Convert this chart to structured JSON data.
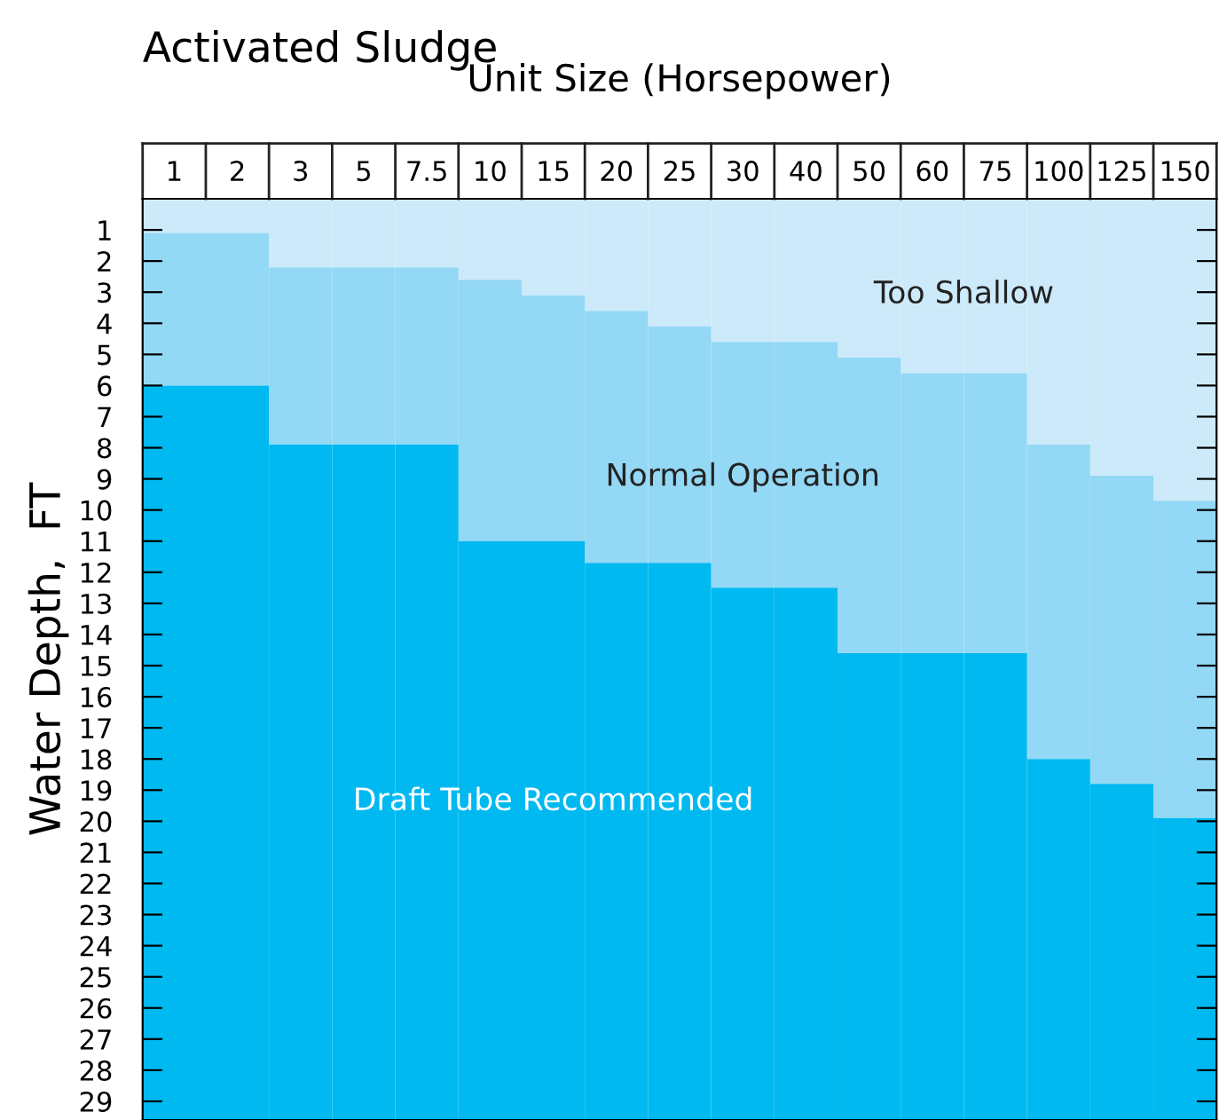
{
  "chart_data": {
    "type": "bar",
    "stacked": true,
    "title": "Activated Sludge",
    "xlabel": "Unit Size (Horsepower)",
    "ylabel": "Water Depth,  FT",
    "categories": [
      "1",
      "2",
      "3",
      "5",
      "7.5",
      "10",
      "15",
      "20",
      "25",
      "30",
      "40",
      "50",
      "60",
      "75",
      "100",
      "125",
      "150"
    ],
    "series": [
      {
        "name": "Too Shallow",
        "color": "#cdeafa",
        "values": [
          1.1,
          1.1,
          2.2,
          2.2,
          2.2,
          2.6,
          3.1,
          3.6,
          4.1,
          4.6,
          4.6,
          5.1,
          5.6,
          5.6,
          7.9,
          8.9,
          9.7
        ]
      },
      {
        "name": "Normal Operation",
        "color": "#93d8f5",
        "values": [
          4.9,
          4.9,
          5.7,
          5.7,
          5.7,
          8.4,
          7.9,
          8.1,
          7.6,
          7.9,
          7.9,
          9.5,
          9.0,
          9.0,
          10.1,
          9.9,
          10.2
        ]
      },
      {
        "name": "Draft Tube Recommended",
        "color": "#00b9f0",
        "values": [
          23.6,
          23.6,
          21.7,
          21.7,
          21.7,
          18.6,
          18.6,
          17.9,
          17.9,
          17.1,
          17.1,
          15.0,
          15.0,
          15.0,
          11.6,
          10.8,
          9.7
        ]
      }
    ],
    "ylim": [
      29.6,
      0
    ],
    "yticks": [
      1,
      2,
      3,
      4,
      5,
      6,
      7,
      8,
      9,
      10,
      11,
      12,
      13,
      14,
      15,
      16,
      17,
      18,
      19,
      20,
      21,
      22,
      23,
      24,
      25,
      26,
      27,
      28,
      29
    ]
  }
}
